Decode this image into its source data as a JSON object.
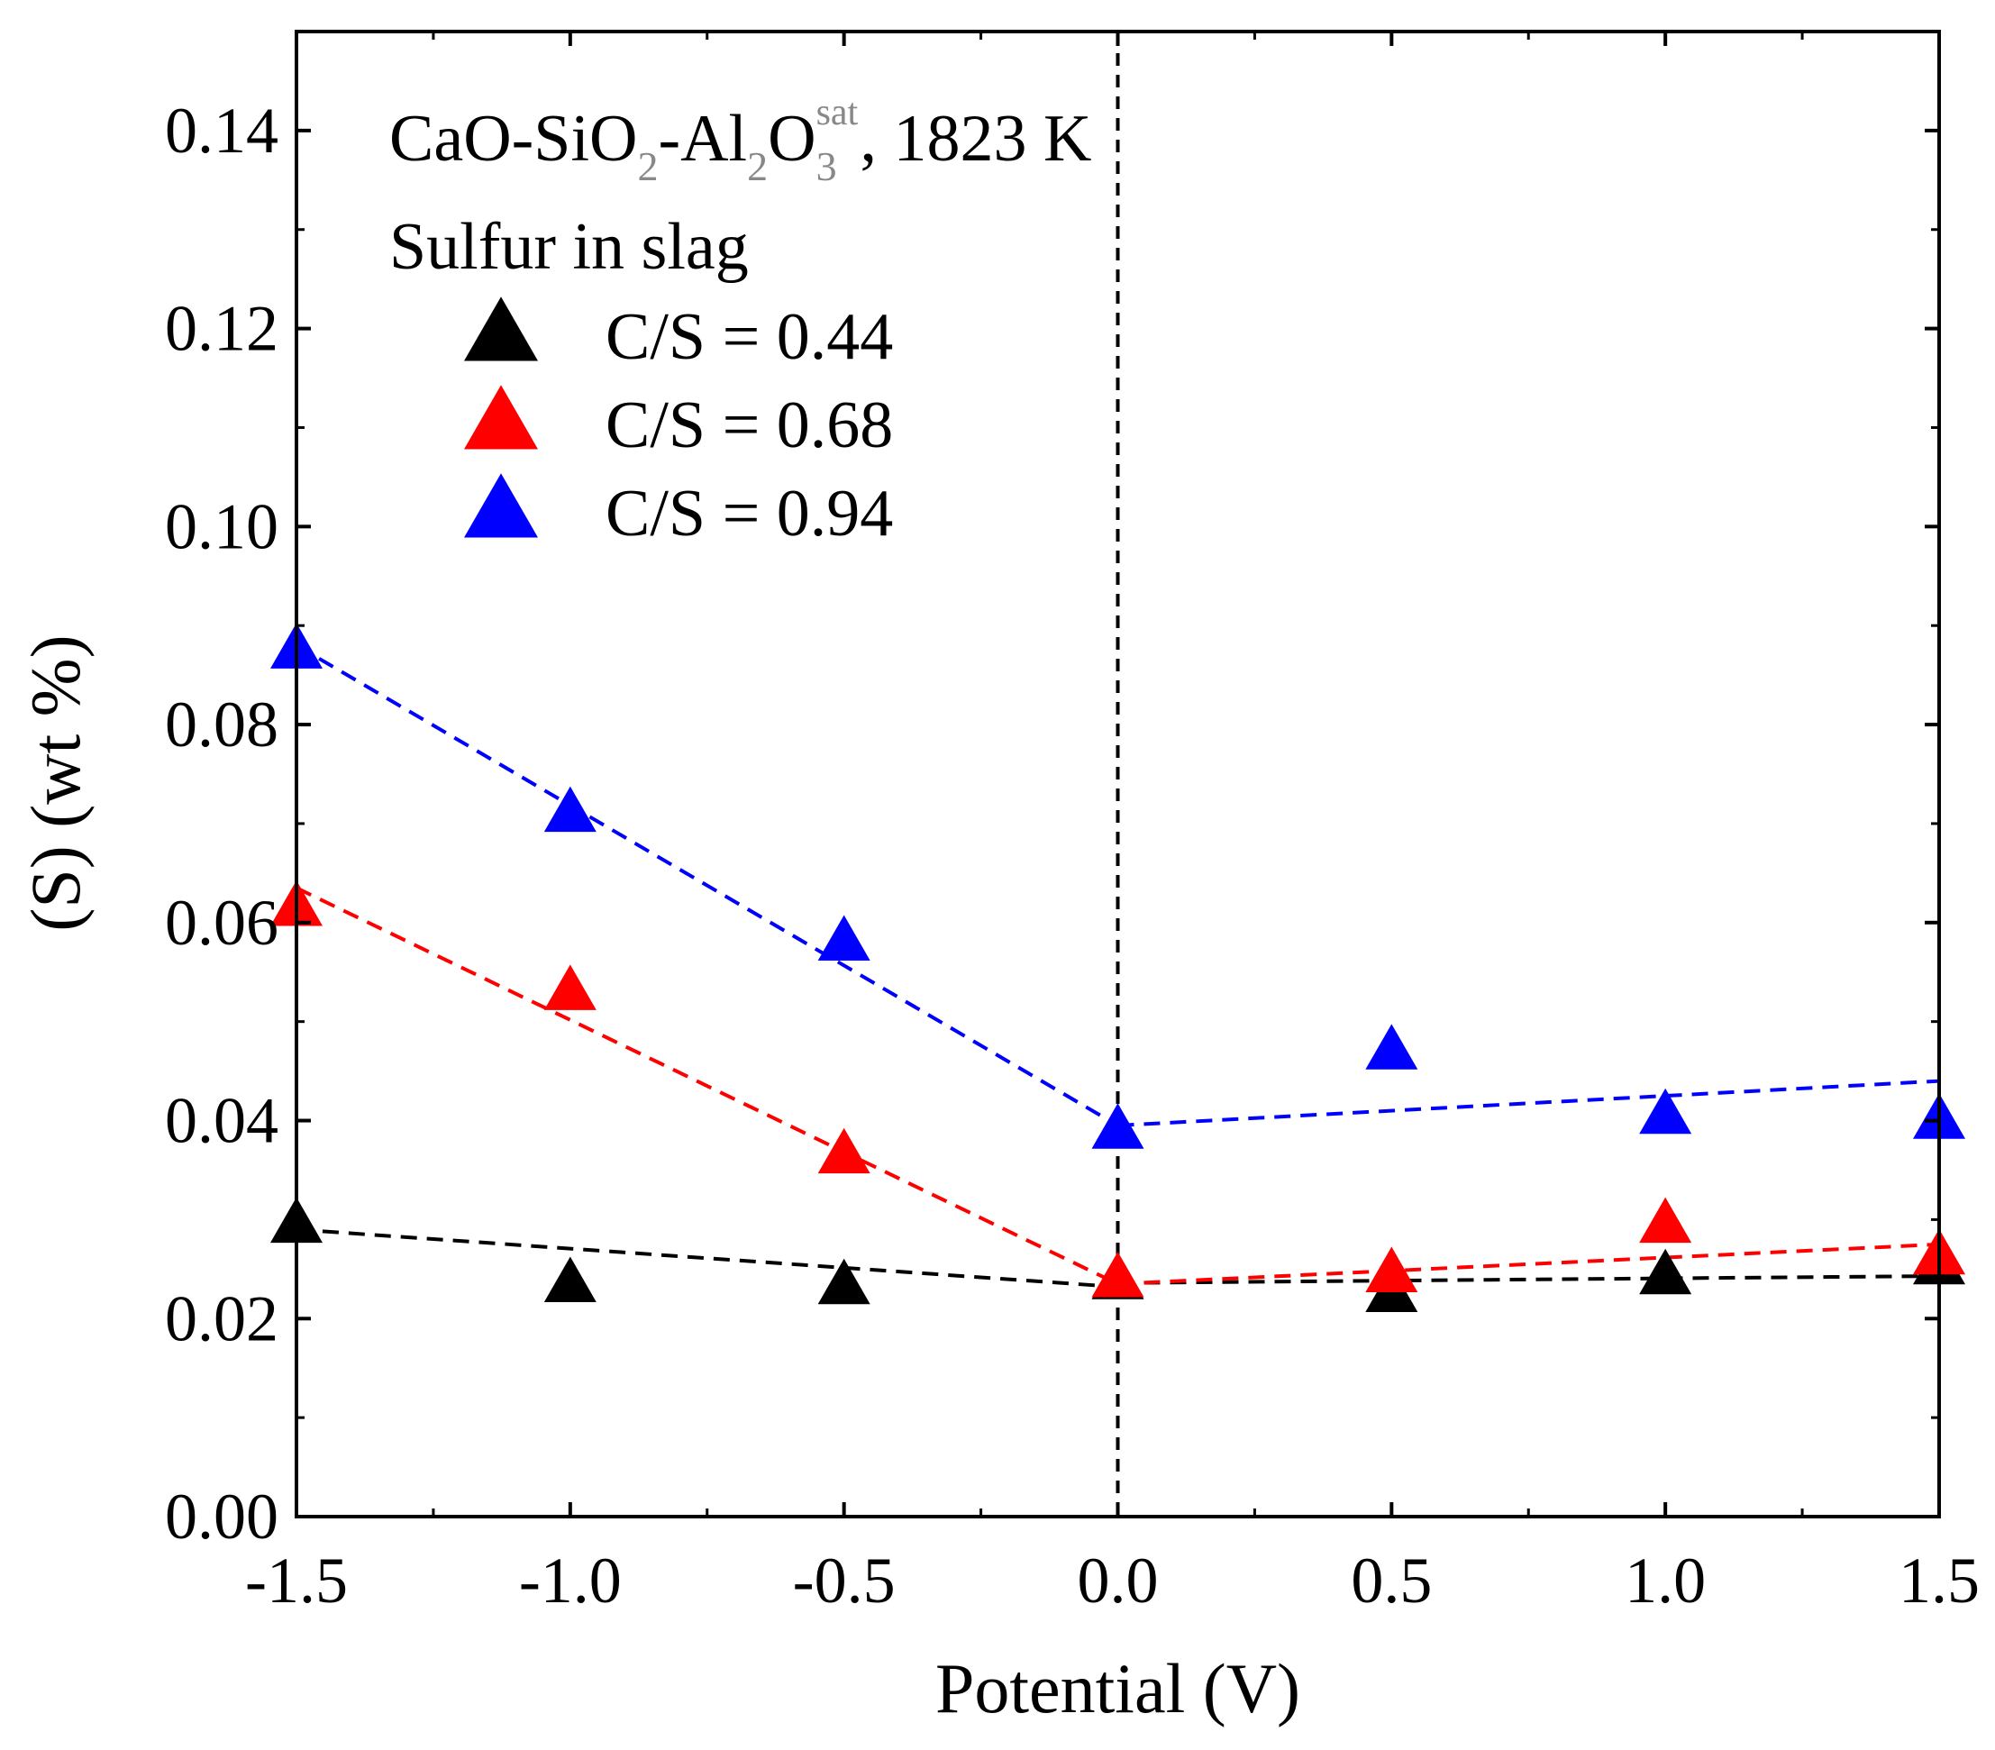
{
  "chart_data": {
    "type": "scatter",
    "title": "",
    "xlabel": "Potential (V)",
    "ylabel": "(S) (wt %)",
    "xlim": [
      -1.5,
      1.5
    ],
    "ylim": [
      0.0,
      0.15
    ],
    "xticks": [
      -1.5,
      -1.0,
      -0.5,
      0.0,
      0.5,
      1.0,
      1.5
    ],
    "xtick_labels": [
      "-1.5",
      "-1.0",
      "-0.5",
      "0.0",
      "0.5",
      "1.0",
      "1.5"
    ],
    "yticks": [
      0.0,
      0.02,
      0.04,
      0.06,
      0.08,
      0.1,
      0.12,
      0.14
    ],
    "ytick_labels": [
      "0.00",
      "0.02",
      "0.04",
      "0.06",
      "0.08",
      "0.10",
      "0.12",
      "0.14"
    ],
    "grid": false,
    "annotation": {
      "base": "CaO-SiO",
      "sub1": "2",
      "mid": "-Al",
      "sub2": "2",
      "o": "O",
      "sub3": "3",
      "sup": "sat",
      "tail": ", 1823 K"
    },
    "legend_title": "Sulfur in slag",
    "legend_location": "top-left",
    "vertical_reference_line": 0.0,
    "series": [
      {
        "name": "C/S = 0.44",
        "color": "#000000",
        "marker": "triangle-up",
        "x": [
          -1.5,
          -1.0,
          -0.5,
          0.0,
          0.5,
          1.0,
          1.5
        ],
        "y": [
          0.0295,
          0.0235,
          0.0233,
          0.0238,
          0.0225,
          0.0243,
          0.0253
        ],
        "fit": [
          {
            "x": [
              -1.5,
              0.0
            ],
            "y": [
              0.029,
              0.0232
            ]
          },
          {
            "x": [
              0.0,
              1.5
            ],
            "y": [
              0.0236,
              0.0243
            ]
          }
        ]
      },
      {
        "name": "C/S = 0.68",
        "color": "#ff0000",
        "marker": "triangle-up",
        "x": [
          -1.5,
          -1.0,
          -0.5,
          0.0,
          0.5,
          1.0,
          1.5
        ],
        "y": [
          0.0615,
          0.053,
          0.0365,
          0.024,
          0.0245,
          0.0295,
          0.0263
        ],
        "fit": [
          {
            "x": [
              -1.5,
              0.0
            ],
            "y": [
              0.0635,
              0.0235
            ]
          },
          {
            "x": [
              0.0,
              1.5
            ],
            "y": [
              0.0235,
              0.0275
            ]
          }
        ]
      },
      {
        "name": "C/S = 0.94",
        "color": "#0000ff",
        "marker": "triangle-up",
        "x": [
          -1.5,
          -1.0,
          -0.5,
          0.0,
          0.5,
          1.0,
          1.5
        ],
        "y": [
          0.0875,
          0.071,
          0.058,
          0.039,
          0.047,
          0.0405,
          0.04
        ],
        "fit": [
          {
            "x": [
              -1.5,
              0.0
            ],
            "y": [
              0.088,
              0.0395
            ]
          },
          {
            "x": [
              0.0,
              1.5
            ],
            "y": [
              0.0395,
              0.044
            ]
          }
        ]
      }
    ]
  }
}
